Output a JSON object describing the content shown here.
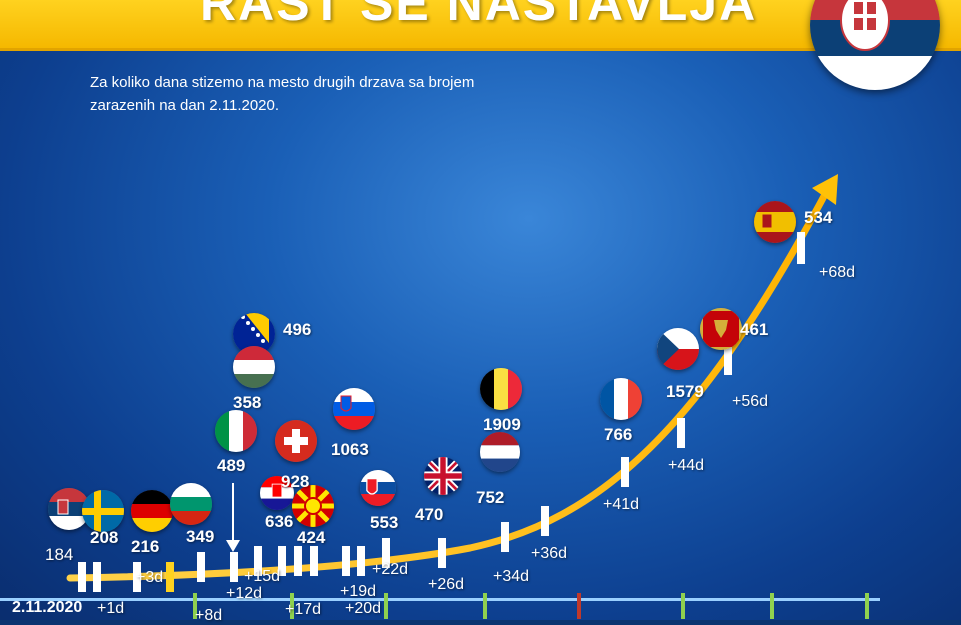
{
  "header": {
    "title": "RAST SE NASTAVLJA"
  },
  "subtitle": "Za koliko dana stizemo na mesto drugih drzava sa brojem zarazenih na dan 2.11.2020.",
  "start_date": "2.11.2020",
  "countries": [
    {
      "flag": "serbia-flag",
      "count": "184"
    },
    {
      "flag": "sweden-flag",
      "count": "208"
    },
    {
      "flag": "germany-flag",
      "count": "216"
    },
    {
      "flag": "bulgaria-flag",
      "count": "349"
    },
    {
      "flag": "bosnia-flag",
      "count": "496"
    },
    {
      "flag": "hungary-flag",
      "count": "358"
    },
    {
      "flag": "italy-flag",
      "count": "489"
    },
    {
      "flag": "switzerland-flag",
      "count": "928"
    },
    {
      "flag": "croatia-flag",
      "count": "636"
    },
    {
      "flag": "north-macedonia-flag",
      "count": "424"
    },
    {
      "flag": "slovenia-flag",
      "count": "1063"
    },
    {
      "flag": "slovakia-flag",
      "count": "553"
    },
    {
      "flag": "uk-flag",
      "count": "470"
    },
    {
      "flag": "belgium-flag",
      "count": "1909"
    },
    {
      "flag": "netherlands-flag",
      "count": "752"
    },
    {
      "flag": "france-flag",
      "count": "766"
    },
    {
      "flag": "czech-flag",
      "count": "1579"
    },
    {
      "flag": "montenegro-flag",
      "count": "461"
    },
    {
      "flag": "spain-flag",
      "count": "534"
    }
  ],
  "day_labels": [
    "+1d",
    "+3d",
    "+8d",
    "+12d",
    "+15d",
    "+17d",
    "+19d",
    "+20d",
    "+22d",
    "+26d",
    "+34d",
    "+36d",
    "+41d",
    "+44d",
    "+56d",
    "+68d"
  ],
  "colors": {
    "background": "#1a5fb6",
    "header": "#ffd21f",
    "curve": "#ffc107",
    "text": "#ffffff"
  }
}
